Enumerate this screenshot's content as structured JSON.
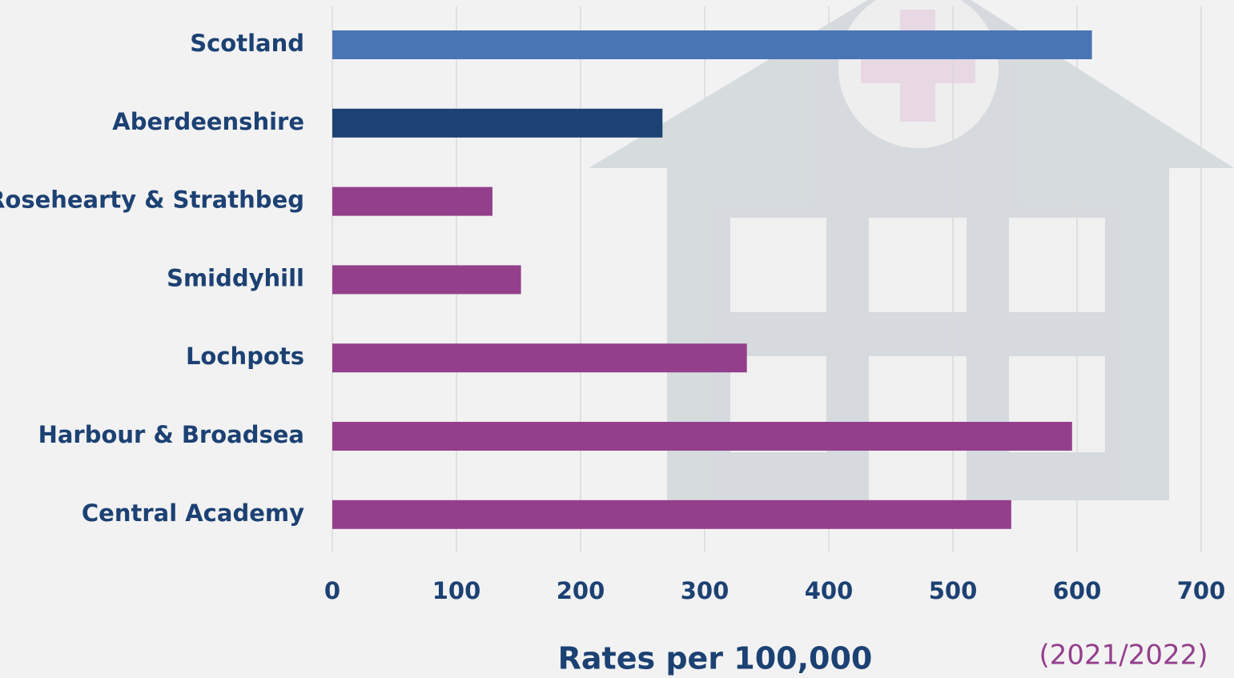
{
  "chart_data": {
    "type": "bar",
    "orientation": "horizontal",
    "categories": [
      "Scotland",
      "Aberdeenshire",
      "Rosehearty & Strathbeg",
      "Smiddyhill",
      "Lochpots",
      "Harbour & Broadsea",
      "Central Academy"
    ],
    "values": [
      612,
      266,
      129,
      152,
      334,
      596,
      547
    ],
    "colors": [
      "#4a75b5",
      "#1c4173",
      "#943f8c",
      "#943f8c",
      "#943f8c",
      "#943f8c",
      "#943f8c"
    ],
    "xlim": [
      0,
      700
    ],
    "xticks": [
      0,
      100,
      200,
      300,
      400,
      500,
      600,
      700
    ],
    "xlabel": "Rates per 100,000",
    "annotation": "(2021/2022)",
    "grid": true
  }
}
